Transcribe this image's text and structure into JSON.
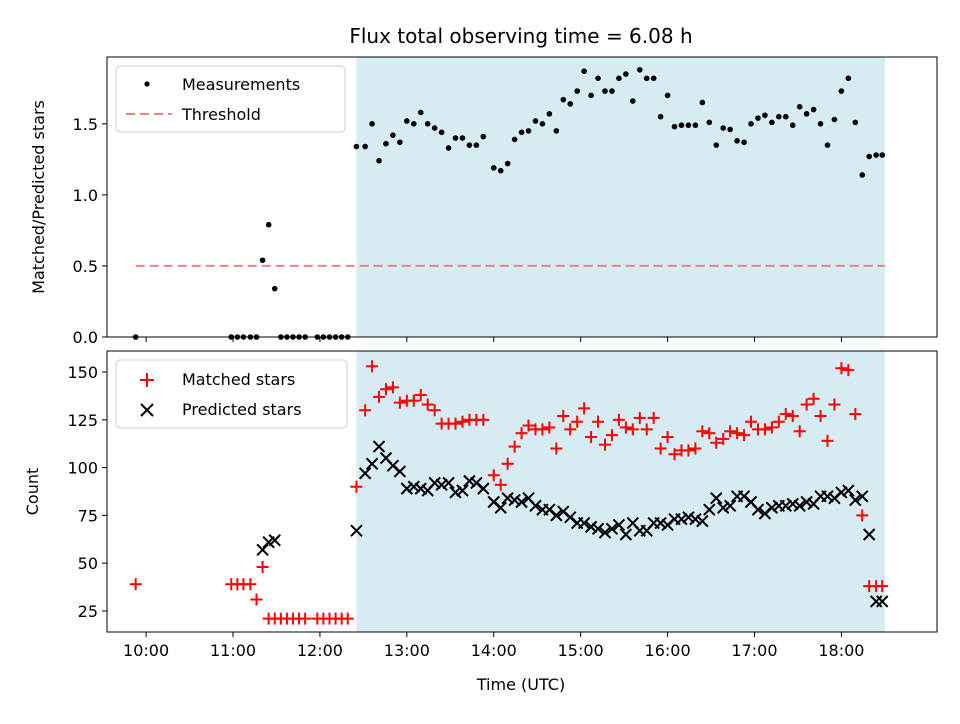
{
  "chart_data": {
    "type": "scatter",
    "title": "Flux total observing time = 6.08 h",
    "xlabel": "Time (UTC)",
    "x_tick_labels": [
      "10:00",
      "11:00",
      "12:00",
      "13:00",
      "14:00",
      "15:00",
      "16:00",
      "17:00",
      "18:00"
    ],
    "x_range_hours": [
      9.55,
      19.1
    ],
    "shaded_span_hours": [
      12.42,
      18.5
    ],
    "colors": {
      "measurements": "#000000",
      "threshold": "#f08080",
      "matched": "#ff0000",
      "predicted": "#000000",
      "shade": "#add8e6"
    },
    "panels": [
      {
        "ylabel": "Matched/Predicted stars",
        "ylim": [
          0,
          1.97
        ],
        "y_ticks": [
          0.0,
          0.5,
          1.0,
          1.5
        ],
        "y_tick_labels": [
          "0.0",
          "0.5",
          "1.0",
          "1.5"
        ],
        "legend": [
          "Measurements",
          "Threshold"
        ],
        "legend_position": "upper-left",
        "threshold": {
          "value": 0.5,
          "x_start": 9.88,
          "x_end": 18.5
        },
        "series": [
          {
            "name": "Measurements",
            "marker": "dot",
            "x": [
              9.88,
              10.98,
              11.05,
              11.12,
              11.2,
              11.27,
              11.34,
              11.41,
              11.48,
              11.55,
              11.62,
              11.69,
              11.76,
              11.83,
              11.97,
              12.04,
              12.11,
              12.18,
              12.25,
              12.32,
              12.42,
              12.52,
              12.6,
              12.68,
              12.76,
              12.84,
              12.92,
              13.0,
              13.08,
              13.16,
              13.24,
              13.32,
              13.4,
              13.48,
              13.56,
              13.64,
              13.72,
              13.8,
              13.88,
              14.0,
              14.08,
              14.16,
              14.24,
              14.32,
              14.4,
              14.48,
              14.56,
              14.64,
              14.72,
              14.8,
              14.88,
              14.96,
              15.04,
              15.12,
              15.2,
              15.28,
              15.36,
              15.44,
              15.52,
              15.6,
              15.68,
              15.76,
              15.84,
              15.92,
              16.0,
              16.08,
              16.16,
              16.24,
              16.32,
              16.4,
              16.48,
              16.56,
              16.64,
              16.72,
              16.8,
              16.88,
              16.96,
              17.04,
              17.12,
              17.2,
              17.28,
              17.36,
              17.44,
              17.52,
              17.6,
              17.68,
              17.76,
              17.84,
              17.92,
              18.0,
              18.08,
              18.16,
              18.24,
              18.32,
              18.4,
              18.47
            ],
            "y": [
              0.0,
              0.0,
              0.0,
              0.0,
              0.0,
              0.0,
              0.54,
              0.79,
              0.34,
              0.0,
              0.0,
              0.0,
              0.0,
              0.0,
              0.0,
              0.0,
              0.0,
              0.0,
              0.0,
              0.0,
              1.34,
              1.34,
              1.5,
              1.24,
              1.36,
              1.42,
              1.37,
              1.52,
              1.5,
              1.58,
              1.5,
              1.47,
              1.44,
              1.33,
              1.4,
              1.4,
              1.35,
              1.35,
              1.41,
              1.19,
              1.17,
              1.22,
              1.39,
              1.44,
              1.45,
              1.52,
              1.5,
              1.57,
              1.45,
              1.67,
              1.64,
              1.73,
              1.87,
              1.7,
              1.82,
              1.73,
              1.73,
              1.82,
              1.85,
              1.66,
              1.88,
              1.82,
              1.82,
              1.55,
              1.7,
              1.48,
              1.49,
              1.49,
              1.49,
              1.65,
              1.51,
              1.35,
              1.47,
              1.46,
              1.38,
              1.37,
              1.5,
              1.54,
              1.56,
              1.51,
              1.55,
              1.55,
              1.49,
              1.62,
              1.57,
              1.6,
              1.5,
              1.35,
              1.53,
              1.73,
              1.82,
              1.51,
              1.14,
              1.27,
              1.28,
              1.28
            ]
          }
        ]
      },
      {
        "ylabel": "Count",
        "ylim": [
          14,
          161
        ],
        "y_ticks": [
          25,
          50,
          75,
          100,
          125,
          150
        ],
        "y_tick_labels": [
          "25",
          "50",
          "75",
          "100",
          "125",
          "150"
        ],
        "legend": [
          "Matched stars",
          "Predicted stars"
        ],
        "legend_position": "upper-left",
        "series": [
          {
            "name": "Matched stars",
            "marker": "plus",
            "x": [
              9.88,
              10.98,
              11.05,
              11.12,
              11.2,
              11.27,
              11.34,
              11.41,
              11.48,
              11.55,
              11.62,
              11.69,
              11.76,
              11.83,
              11.97,
              12.04,
              12.11,
              12.18,
              12.25,
              12.32,
              12.42,
              12.52,
              12.6,
              12.68,
              12.76,
              12.84,
              12.92,
              13.0,
              13.08,
              13.16,
              13.24,
              13.32,
              13.4,
              13.48,
              13.56,
              13.64,
              13.72,
              13.8,
              13.88,
              14.0,
              14.08,
              14.16,
              14.24,
              14.32,
              14.4,
              14.48,
              14.56,
              14.64,
              14.72,
              14.8,
              14.88,
              14.96,
              15.04,
              15.12,
              15.2,
              15.28,
              15.36,
              15.44,
              15.52,
              15.6,
              15.68,
              15.76,
              15.84,
              15.92,
              16.0,
              16.08,
              16.16,
              16.24,
              16.32,
              16.4,
              16.48,
              16.56,
              16.64,
              16.72,
              16.8,
              16.88,
              16.96,
              17.04,
              17.12,
              17.2,
              17.28,
              17.36,
              17.44,
              17.52,
              17.6,
              17.68,
              17.76,
              17.84,
              17.92,
              18.0,
              18.08,
              18.16,
              18.24,
              18.32,
              18.4,
              18.47
            ],
            "y": [
              39,
              39,
              39,
              39,
              39,
              31,
              48,
              21,
              21,
              21,
              21,
              21,
              21,
              21,
              21,
              21,
              21,
              21,
              21,
              21,
              90,
              130,
              153,
              137,
              141,
              142,
              134,
              135,
              135,
              138,
              133,
              130,
              123,
              123,
              123,
              124,
              125,
              125,
              125,
              96,
              91,
              102,
              111,
              118,
              122,
              120,
              120,
              121,
              110,
              127,
              120,
              124,
              131,
              116,
              124,
              112,
              117,
              125,
              121,
              120,
              126,
              120,
              126,
              110,
              116,
              107,
              109,
              109,
              110,
              119,
              118,
              113,
              115,
              119,
              118,
              117,
              124,
              120,
              120,
              121,
              124,
              128,
              127,
              119,
              133,
              136,
              127,
              114,
              133,
              152,
              151,
              128,
              75,
              38,
              38,
              38
            ]
          },
          {
            "name": "Predicted stars",
            "marker": "cross",
            "x": [
              11.34,
              11.41,
              11.48,
              12.42,
              12.52,
              12.6,
              12.68,
              12.76,
              12.84,
              12.92,
              13.0,
              13.08,
              13.16,
              13.24,
              13.32,
              13.4,
              13.48,
              13.56,
              13.64,
              13.72,
              13.8,
              13.88,
              14.0,
              14.08,
              14.16,
              14.24,
              14.32,
              14.4,
              14.48,
              14.56,
              14.64,
              14.72,
              14.8,
              14.88,
              14.96,
              15.04,
              15.12,
              15.2,
              15.28,
              15.36,
              15.44,
              15.52,
              15.6,
              15.68,
              15.76,
              15.84,
              15.92,
              16.0,
              16.08,
              16.16,
              16.24,
              16.32,
              16.4,
              16.48,
              16.56,
              16.64,
              16.72,
              16.8,
              16.88,
              16.96,
              17.04,
              17.12,
              17.2,
              17.28,
              17.36,
              17.44,
              17.52,
              17.6,
              17.68,
              17.76,
              17.84,
              17.92,
              18.0,
              18.08,
              18.16,
              18.24,
              18.32,
              18.4,
              18.47
            ],
            "y": [
              57,
              61,
              62,
              67,
              97,
              102,
              111,
              105,
              101,
              98,
              89,
              90,
              89,
              88,
              92,
              91,
              92,
              87,
              88,
              93,
              92,
              89,
              82,
              79,
              84,
              83,
              82,
              84,
              80,
              78,
              78,
              75,
              77,
              74,
              71,
              71,
              69,
              68,
              66,
              68,
              70,
              65,
              71,
              67,
              67,
              71,
              71,
              70,
              73,
              73,
              74,
              73,
              72,
              78,
              84,
              79,
              80,
              85,
              85,
              82,
              78,
              76,
              79,
              80,
              80,
              81,
              80,
              82,
              81,
              85,
              85,
              84,
              87,
              88,
              83,
              85,
              65,
              30,
              30
            ]
          }
        ]
      }
    ]
  }
}
